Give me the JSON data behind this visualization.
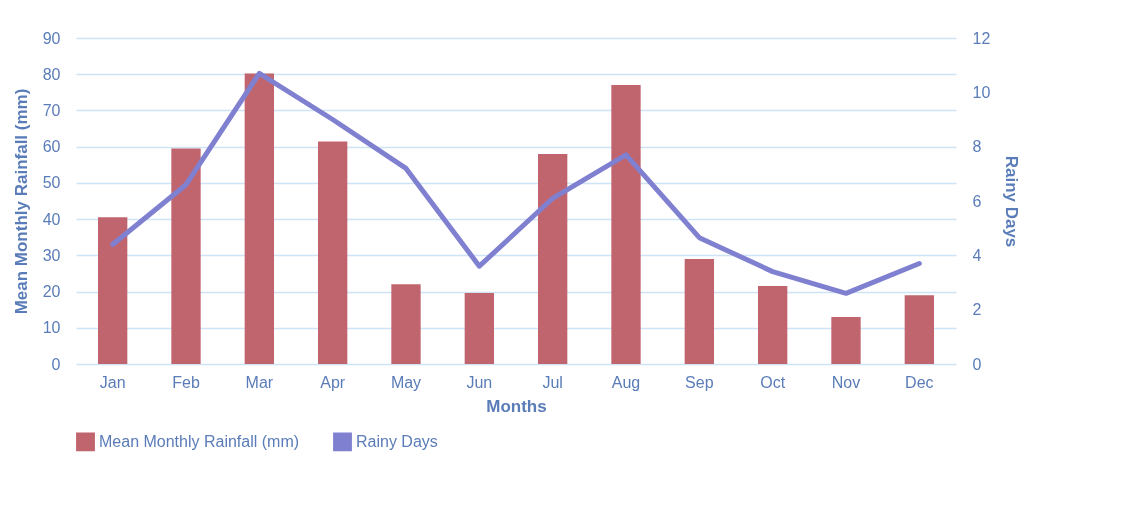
{
  "chart_data": {
    "type": "bar",
    "xlabel": "Months",
    "ylabel": "Mean Monthly Rainfall (mm)",
    "y2label": "Rainy Days",
    "categories": [
      "Jan",
      "Feb",
      "Mar",
      "Apr",
      "May",
      "Jun",
      "Jul",
      "Aug",
      "Sep",
      "Oct",
      "Nov",
      "Dec"
    ],
    "series": [
      {
        "name": "Mean Monthly Rainfall (mm)",
        "color": "#c0646e",
        "values": [
          40.5,
          59.5,
          80.2,
          61.4,
          22,
          19.6,
          58,
          77,
          29,
          21.5,
          13,
          19
        ]
      },
      {
        "name": "Rainy Days",
        "type": "line",
        "axis": "y2",
        "color": "#8080d0",
        "values": [
          4.4,
          6.6,
          10.7,
          9,
          7.2,
          3.6,
          6.1,
          7.7,
          4.65,
          3.4,
          2.6,
          3.7
        ]
      }
    ],
    "ylim": [
      0,
      90
    ],
    "yticks": [
      0,
      10,
      20,
      30,
      40,
      50,
      60,
      70,
      80,
      90
    ],
    "y2lim": [
      0,
      12
    ],
    "y2ticks": [
      0,
      2,
      4,
      6,
      8,
      10,
      12
    ],
    "grid": "y",
    "legend": "bottom",
    "marker": "none",
    "line_style": "solid"
  }
}
